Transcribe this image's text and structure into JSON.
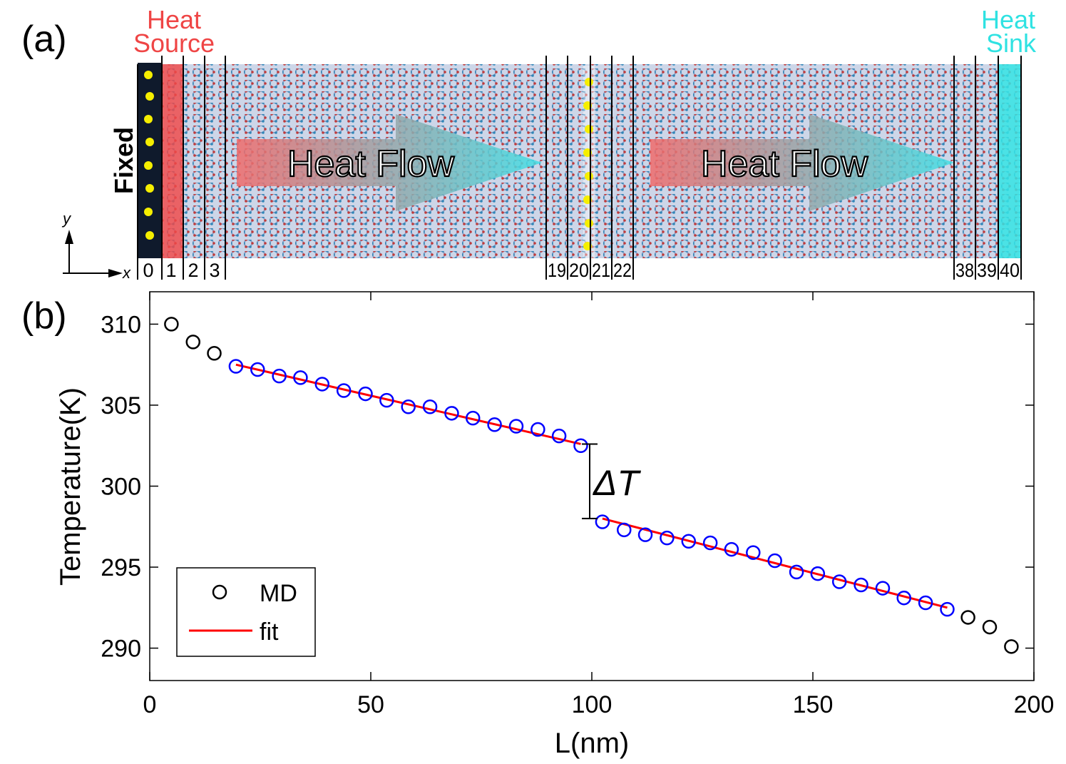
{
  "panel_a": {
    "label": "(a)",
    "source_label": [
      "Heat",
      "Source"
    ],
    "sink_label": [
      "Heat",
      "Sink"
    ],
    "fixed_label": "Fixed",
    "flow_label": "Heat Flow",
    "axis_y": "y",
    "axis_x": "x",
    "slab_labels": [
      "0",
      "1",
      "2",
      "3",
      "19",
      "20",
      "21",
      "22",
      "38",
      "39",
      "40"
    ],
    "colors": {
      "source": "#f04848",
      "sink": "#34e4e4",
      "sheet": "#8a9ec4",
      "atom_red": "#c03a3a",
      "atom_blue": "#2f86b8",
      "fixed_atoms": "#f6f000"
    }
  },
  "chart_data": {
    "type": "scatter",
    "panel_label": "(b)",
    "xlabel": "L(nm)",
    "ylabel": "Temperature(K)",
    "xlim": [
      0,
      200
    ],
    "ylim": [
      288,
      312
    ],
    "xticks": [
      0,
      50,
      100,
      150,
      200
    ],
    "yticks": [
      290,
      295,
      300,
      305,
      310
    ],
    "annotation": "ΔT",
    "series": [
      {
        "name": "MD",
        "color": "#000000",
        "x": [
          4.9,
          9.8,
          14.6,
          194.9,
          190.0,
          185.1
        ],
        "y": [
          310.0,
          308.9,
          308.2,
          290.1,
          291.3,
          291.9
        ]
      },
      {
        "name": "MD_fit_region",
        "color": "#0000ff",
        "x": [
          19.5,
          24.4,
          29.3,
          34.1,
          39.0,
          43.9,
          48.8,
          53.6,
          58.5,
          63.4,
          68.3,
          73.1,
          78.0,
          82.9,
          87.8,
          92.6,
          97.5,
          102.4,
          107.3,
          112.1,
          117.0,
          121.9,
          126.8,
          131.6,
          136.5,
          141.4,
          146.3,
          151.1,
          156.0,
          160.9,
          165.8,
          170.6,
          175.5,
          180.4
        ],
        "y": [
          307.4,
          307.2,
          306.8,
          306.7,
          306.3,
          305.9,
          305.7,
          305.3,
          304.9,
          304.9,
          304.5,
          304.2,
          303.8,
          303.7,
          303.5,
          303.1,
          302.5,
          297.8,
          297.3,
          297.0,
          296.8,
          296.6,
          296.5,
          296.1,
          295.9,
          295.4,
          294.7,
          294.6,
          294.1,
          293.9,
          293.7,
          293.1,
          292.8,
          292.4
        ]
      },
      {
        "name": "fit",
        "color": "#ff0000",
        "segments": [
          {
            "x": [
              19.5,
              97.5
            ],
            "y": [
              307.5,
              302.6
            ]
          },
          {
            "x": [
              102.4,
              180.4
            ],
            "y": [
              298.0,
              292.5
            ]
          }
        ]
      }
    ],
    "legend": {
      "position": "bottom-left",
      "entries": [
        {
          "label": "MD"
        },
        {
          "label": "fit"
        }
      ]
    },
    "delta_t": {
      "x": 100,
      "y_top": 302.6,
      "y_bottom": 298.0
    }
  }
}
